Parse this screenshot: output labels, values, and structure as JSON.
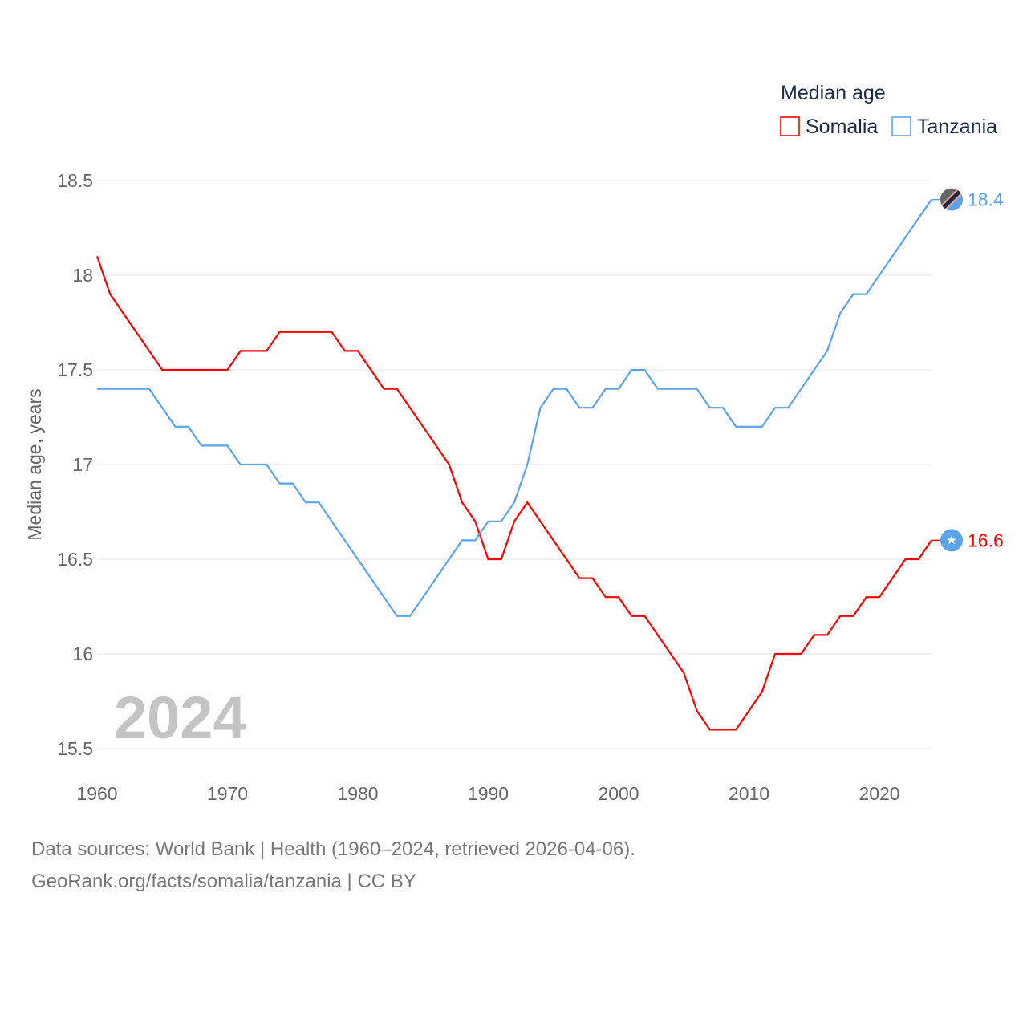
{
  "chart_data": {
    "type": "line",
    "title": "",
    "legend_title": "Median age",
    "legend_placement": "top-right",
    "xlabel": "",
    "ylabel": "Median age, years",
    "xlim": [
      1960,
      2024
    ],
    "ylim": [
      15.5,
      18.5
    ],
    "x_ticks": [
      "1960",
      "1970",
      "1980",
      "1990",
      "2000",
      "2010",
      "2020"
    ],
    "y_ticks": [
      "18.5",
      "18",
      "17.5",
      "17",
      "16.5",
      "16",
      "15.5"
    ],
    "grid": true,
    "year_label": "2024",
    "x_start": 1960,
    "series": [
      {
        "name": "Somalia",
        "color": "#ff0000",
        "end_label": "16.6",
        "flag_icon": "somalia-flag-icon",
        "values": [
          18.1,
          17.9,
          17.8,
          17.7,
          17.6,
          17.5,
          17.5,
          17.5,
          17.5,
          17.5,
          17.5,
          17.6,
          17.6,
          17.6,
          17.7,
          17.7,
          17.7,
          17.7,
          17.7,
          17.6,
          17.6,
          17.5,
          17.4,
          17.4,
          17.3,
          17.2,
          17.1,
          17.0,
          16.8,
          16.7,
          16.5,
          16.5,
          16.7,
          16.8,
          16.7,
          16.6,
          16.5,
          16.4,
          16.4,
          16.3,
          16.3,
          16.2,
          16.2,
          16.1,
          16.0,
          15.9,
          15.7,
          15.6,
          15.6,
          15.6,
          15.7,
          15.8,
          16.0,
          16.0,
          16.0,
          16.1,
          16.1,
          16.2,
          16.2,
          16.3,
          16.3,
          16.4,
          16.5,
          16.5,
          16.6
        ]
      },
      {
        "name": "Tanzania",
        "color": "#5ba3eb",
        "end_label": "18.4",
        "flag_icon": "tanzania-flag-icon",
        "values": [
          17.4,
          17.4,
          17.4,
          17.4,
          17.4,
          17.3,
          17.2,
          17.2,
          17.1,
          17.1,
          17.1,
          17.0,
          17.0,
          17.0,
          16.9,
          16.9,
          16.8,
          16.8,
          16.7,
          16.6,
          16.5,
          16.4,
          16.3,
          16.2,
          16.2,
          16.3,
          16.4,
          16.5,
          16.6,
          16.6,
          16.7,
          16.7,
          16.8,
          17.0,
          17.3,
          17.4,
          17.4,
          17.3,
          17.3,
          17.4,
          17.4,
          17.5,
          17.5,
          17.4,
          17.4,
          17.4,
          17.4,
          17.3,
          17.3,
          17.2,
          17.2,
          17.2,
          17.3,
          17.3,
          17.4,
          17.5,
          17.6,
          17.8,
          17.9,
          17.9,
          18.0,
          18.1,
          18.2,
          18.3,
          18.4
        ]
      }
    ]
  },
  "footer": {
    "line1": "Data sources: World Bank | Health (1960–2024, retrieved 2026-04-06).",
    "line2": "GeoRank.org/facts/somalia/tanzania | CC BY"
  }
}
